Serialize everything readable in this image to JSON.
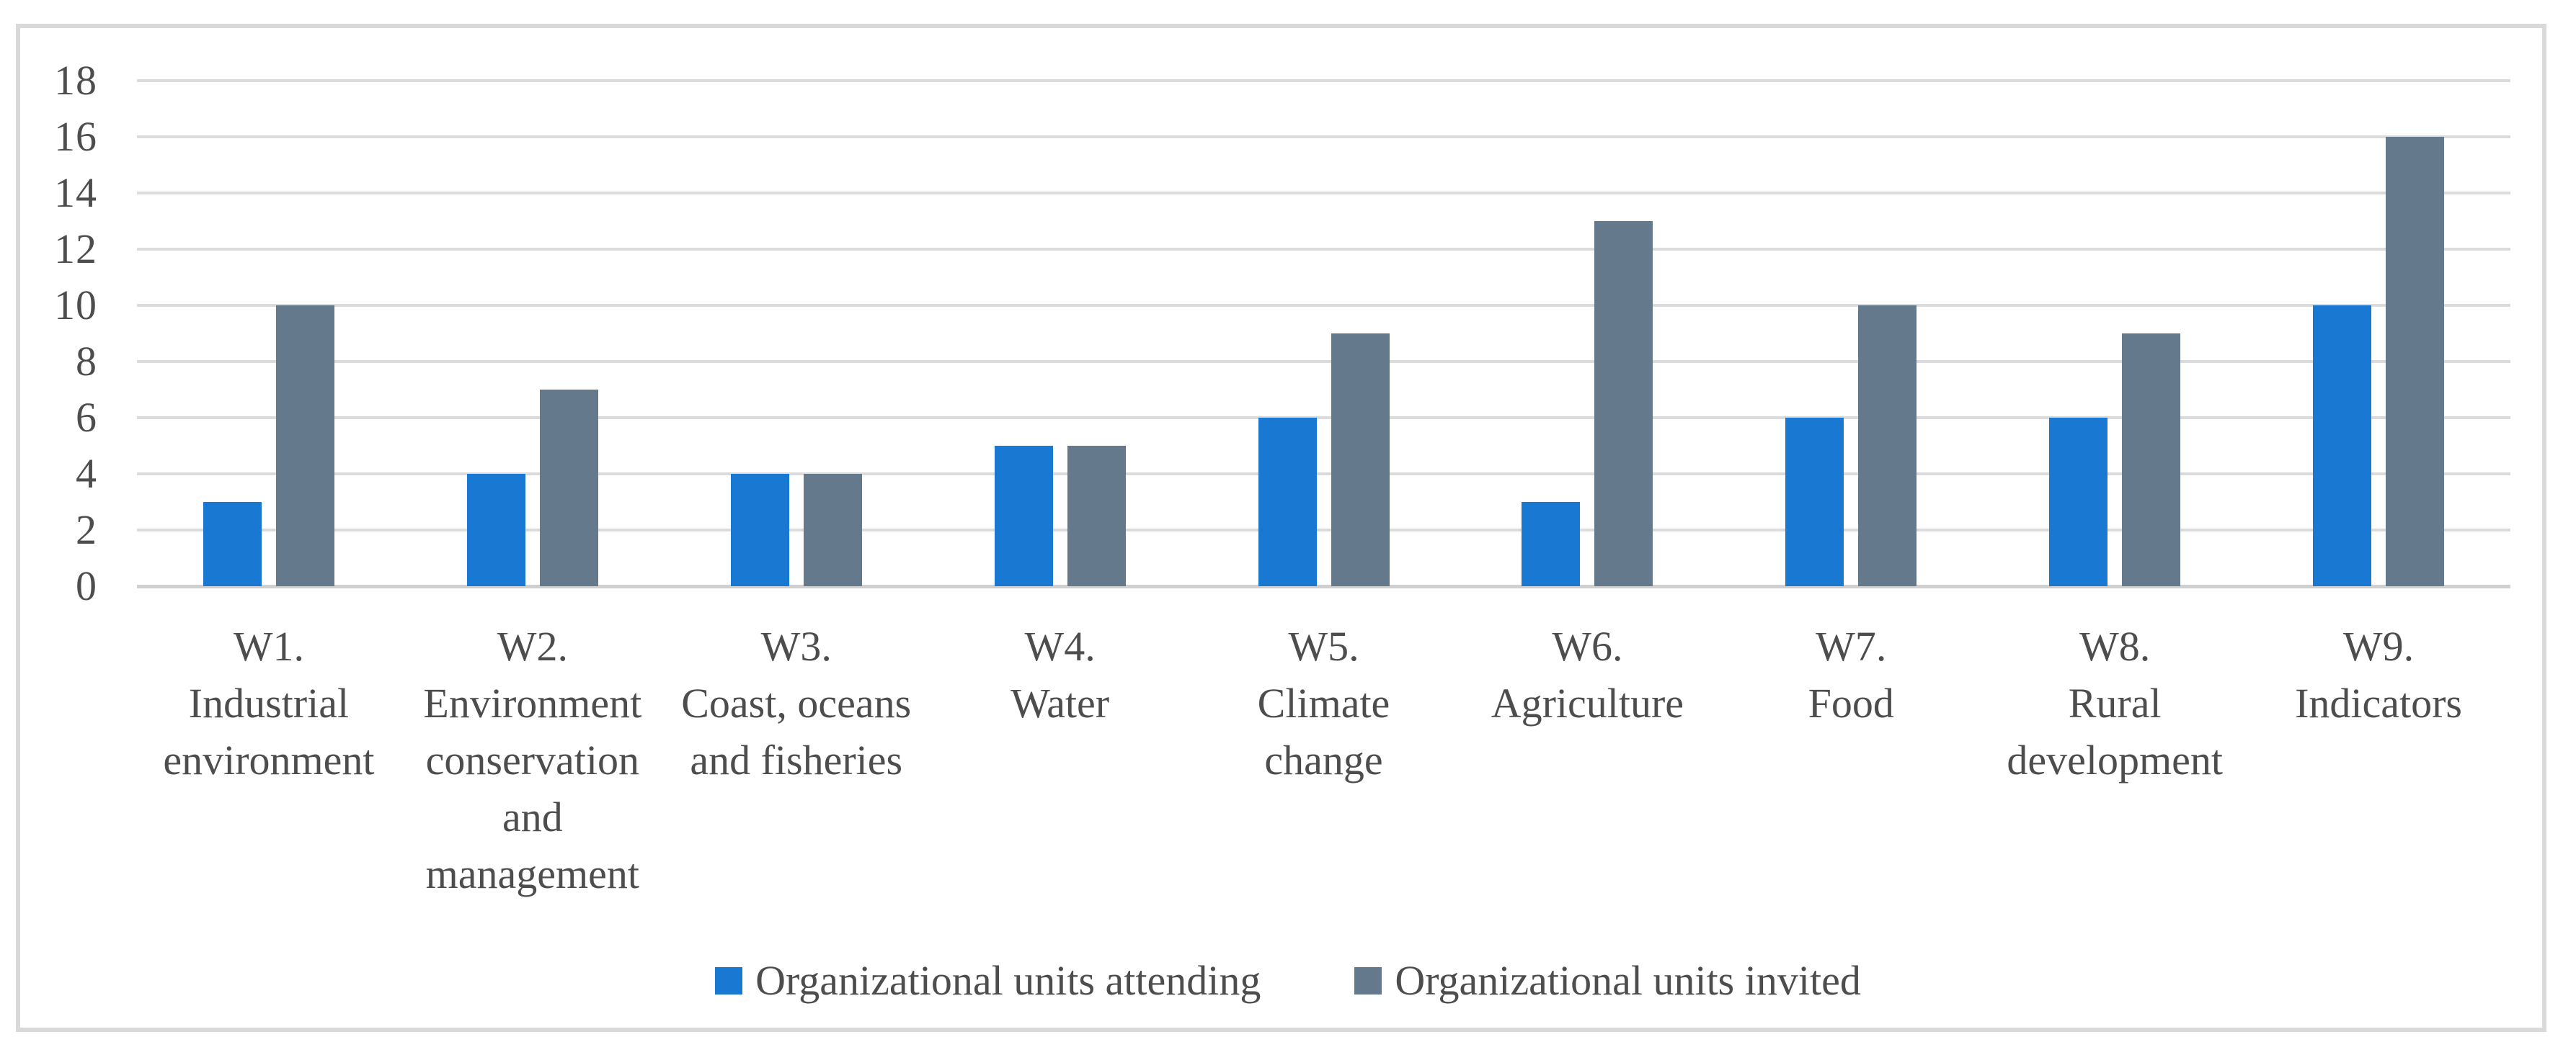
{
  "figure": {
    "title": "",
    "frame_border_color": "#d9d9d9",
    "background_color": "#ffffff",
    "text_color": "#4d4d4d",
    "gridline_color": "#dbdbdb",
    "axis_line_color": "#d0d0d0"
  },
  "chart_data": {
    "type": "bar",
    "title": "",
    "xlabel": "",
    "ylabel": "",
    "categories": [
      "W1. Industrial environment",
      "W2. Environment conservation and management",
      "W3. Coast, oceans and fisheries",
      "W4. Water",
      "W5. Climate change",
      "W6. Agriculture",
      "W7. Food",
      "W8. Rural development",
      "W9. Indicators"
    ],
    "category_lines": [
      [
        "W1.",
        "Industrial",
        "environment"
      ],
      [
        "W2.",
        "Environment",
        "conservation",
        "and",
        "management"
      ],
      [
        "W3.",
        "Coast, oceans",
        "and fisheries"
      ],
      [
        "W4.",
        "Water"
      ],
      [
        "W5.",
        "Climate",
        "change"
      ],
      [
        "W6.",
        "Agriculture"
      ],
      [
        "W7.",
        "Food"
      ],
      [
        "W8.",
        "Rural",
        "development"
      ],
      [
        "W9.",
        "Indicators"
      ]
    ],
    "series": [
      {
        "name": "Organizational units attending",
        "color": "#1878D2",
        "values": [
          3,
          4,
          4,
          5,
          6,
          3,
          6,
          6,
          10
        ]
      },
      {
        "name": "Organizational units invited",
        "color": "#64798C",
        "values": [
          10,
          7,
          4,
          5,
          9,
          13,
          10,
          9,
          16
        ]
      }
    ],
    "y_axis": {
      "min": 0,
      "max": 18,
      "step": 2,
      "ticks": [
        0,
        2,
        4,
        6,
        8,
        10,
        12,
        14,
        16,
        18
      ]
    },
    "grid": true,
    "legend_position": "bottom"
  }
}
